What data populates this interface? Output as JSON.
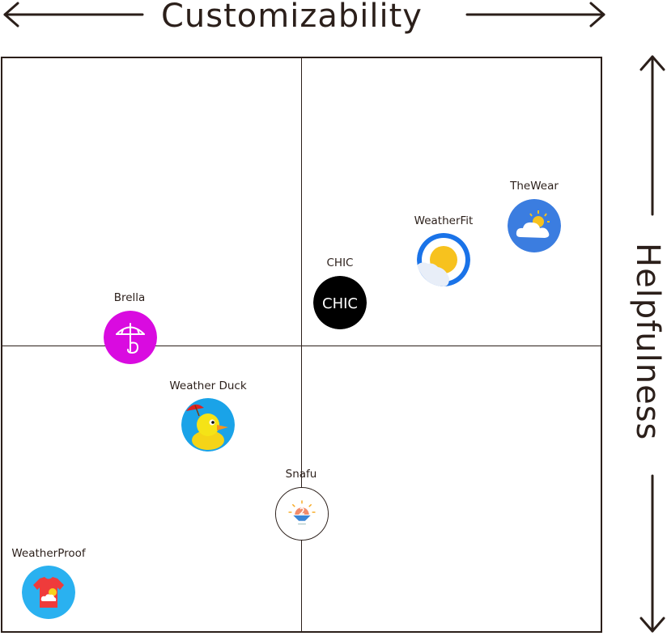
{
  "x_axis": {
    "title": "Customizability"
  },
  "y_axis": {
    "title": "Helpfulness"
  },
  "apps": [
    {
      "id": "thewear",
      "name": "TheWear",
      "icon": "cloud-sun-icon",
      "color": "#3b7de0"
    },
    {
      "id": "weatherfit",
      "name": "WeatherFit",
      "icon": "sun-behind-cloud-icon",
      "color": "#1a73e8"
    },
    {
      "id": "chic",
      "name": "CHIC",
      "icon": "chic-logo-icon",
      "logo_text": "CHIC",
      "color": "#000000"
    },
    {
      "id": "brella",
      "name": "Brella",
      "icon": "umbrella-icon",
      "color": "#d90be0"
    },
    {
      "id": "weatherduck",
      "name": "Weather Duck",
      "icon": "duck-icon",
      "color": "#1aa3e8"
    },
    {
      "id": "snafu",
      "name": "Snafu",
      "icon": "sunrise-icon",
      "color": "#ffffff"
    },
    {
      "id": "weatherproof",
      "name": "WeatherProof",
      "icon": "tshirt-icon",
      "color": "#2ab1f0"
    }
  ]
}
